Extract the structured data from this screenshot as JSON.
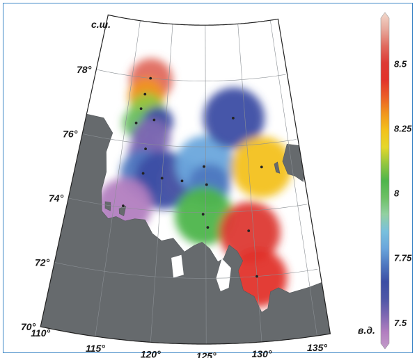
{
  "axes": {
    "lat_title": "с.ш.",
    "lon_title": "в.д.",
    "lat_labels": [
      {
        "text": "78°",
        "lat": 78
      },
      {
        "text": "76°",
        "lat": 76
      },
      {
        "text": "74°",
        "lat": 74
      },
      {
        "text": "72°",
        "lat": 72
      },
      {
        "text": "70°",
        "lat": 70
      }
    ],
    "lon_labels": [
      {
        "text": "110°",
        "lon": 110
      },
      {
        "text": "115°",
        "lon": 115
      },
      {
        "text": "120°",
        "lon": 120
      },
      {
        "text": "125°",
        "lon": 125
      },
      {
        "text": "130°",
        "lon": 130
      },
      {
        "text": "135°",
        "lon": 135
      }
    ]
  },
  "colorbar": {
    "min": 7.4,
    "max": 8.7,
    "ticks": [
      {
        "text": "8.5",
        "value": 8.5
      },
      {
        "text": "8.25",
        "value": 8.25
      },
      {
        "text": "8",
        "value": 8.0
      },
      {
        "text": "7.75",
        "value": 7.75
      },
      {
        "text": "7.5",
        "value": 7.5
      }
    ],
    "colors": [
      "#c39cc9",
      "#b27ec0",
      "#7d68b2",
      "#4d56a6",
      "#3b4ea4",
      "#4f78c0",
      "#6aa6dc",
      "#79c0dd",
      "#92d0a2",
      "#6dc065",
      "#4eb54b",
      "#93c63e",
      "#e5d72a",
      "#f3c11b",
      "#f1951d",
      "#eb5d26",
      "#e2322a",
      "#dd3a34",
      "#e06a5e",
      "#e7a99c",
      "#f3d9cc"
    ]
  },
  "stations": [
    {
      "lon": 117.5,
      "lat": 78.0,
      "value": 8.55
    },
    {
      "lon": 117.0,
      "lat": 77.5,
      "value": 8.3
    },
    {
      "lon": 116.7,
      "lat": 77.05,
      "value": 8.15
    },
    {
      "lon": 116.3,
      "lat": 76.6,
      "value": 8.05
    },
    {
      "lon": 118.5,
      "lat": 76.75,
      "value": 7.55
    },
    {
      "lon": 117.8,
      "lat": 75.85,
      "value": 7.5
    },
    {
      "lon": 117.8,
      "lat": 75.1,
      "value": 7.72
    },
    {
      "lon": 120.0,
      "lat": 75.0,
      "value": 7.68
    },
    {
      "lon": 122.3,
      "lat": 74.95,
      "value": 7.55
    },
    {
      "lon": 124.8,
      "lat": 75.4,
      "value": 7.8
    },
    {
      "lon": 125.1,
      "lat": 74.85,
      "value": 7.7
    },
    {
      "lon": 128.5,
      "lat": 76.85,
      "value": 7.68
    },
    {
      "lon": 131.5,
      "lat": 75.3,
      "value": 8.25
    },
    {
      "lon": 116.0,
      "lat": 74.05,
      "value": 7.5
    },
    {
      "lon": 124.7,
      "lat": 73.95,
      "value": 8.02
    },
    {
      "lon": 125.2,
      "lat": 73.55,
      "value": 8.0
    },
    {
      "lon": 129.5,
      "lat": 73.4,
      "value": 8.5
    },
    {
      "lon": 130.0,
      "lat": 72.0,
      "value": 8.45
    }
  ],
  "blobs": [
    {
      "lon": 117.6,
      "lat": 77.95,
      "r": 31,
      "value": 8.55
    },
    {
      "lon": 117.2,
      "lat": 77.45,
      "r": 26,
      "value": 8.3
    },
    {
      "lon": 117.5,
      "lat": 77.0,
      "r": 26,
      "value": 8.1
    },
    {
      "lon": 116.5,
      "lat": 76.6,
      "r": 22,
      "value": 8.0
    },
    {
      "lon": 119.0,
      "lat": 76.7,
      "r": 22,
      "value": 7.65
    },
    {
      "lon": 118.3,
      "lat": 76.2,
      "r": 28,
      "value": 7.55
    },
    {
      "lon": 117.9,
      "lat": 75.7,
      "r": 26,
      "value": 7.5
    },
    {
      "lon": 117.9,
      "lat": 75.1,
      "r": 34,
      "value": 7.72
    },
    {
      "lon": 120.2,
      "lat": 74.95,
      "r": 42,
      "value": 7.68
    },
    {
      "lon": 122.3,
      "lat": 74.95,
      "r": 30,
      "value": 7.6
    },
    {
      "lon": 124.9,
      "lat": 75.45,
      "r": 42,
      "value": 7.8
    },
    {
      "lon": 125.4,
      "lat": 74.85,
      "r": 30,
      "value": 7.72
    },
    {
      "lon": 128.6,
      "lat": 76.85,
      "r": 44,
      "value": 7.68
    },
    {
      "lon": 131.5,
      "lat": 75.3,
      "r": 44,
      "value": 8.25
    },
    {
      "lon": 116.1,
      "lat": 74.05,
      "r": 40,
      "value": 7.48
    },
    {
      "lon": 124.8,
      "lat": 73.9,
      "r": 42,
      "value": 8.02
    },
    {
      "lon": 129.6,
      "lat": 73.35,
      "r": 44,
      "value": 8.5
    },
    {
      "lon": 130.1,
      "lat": 71.95,
      "r": 42,
      "value": 8.45
    }
  ],
  "land": [
    [
      [
        106,
        69.5
      ],
      [
        116,
        69.5
      ],
      [
        124,
        69.5
      ],
      [
        132,
        69.5
      ],
      [
        140,
        69.5
      ],
      [
        140,
        71.2
      ],
      [
        138,
        71.5
      ],
      [
        136.5,
        71.6
      ],
      [
        135,
        71.5
      ],
      [
        133,
        71.4
      ],
      [
        132,
        71.6
      ],
      [
        131.2,
        71.5
      ],
      [
        130.8,
        71.0
      ],
      [
        130.2,
        70.9
      ],
      [
        129.6,
        71.4
      ],
      [
        128.6,
        71.6
      ],
      [
        128.2,
        72.2
      ],
      [
        128.7,
        72.5
      ],
      [
        128.2,
        72.8
      ],
      [
        127.4,
        73.0
      ],
      [
        126.8,
        72.6
      ],
      [
        126.2,
        72.5
      ],
      [
        125.4,
        72.9
      ],
      [
        124.6,
        73.1
      ],
      [
        123.8,
        73.0
      ],
      [
        122.8,
        72.8
      ],
      [
        121.6,
        73.2
      ],
      [
        120.4,
        73.1
      ],
      [
        119.4,
        73.3
      ],
      [
        118.5,
        73.7
      ],
      [
        117.4,
        73.7
      ],
      [
        116.4,
        73.6
      ],
      [
        115.4,
        73.7
      ],
      [
        114.6,
        73.6
      ],
      [
        113.8,
        73.8
      ],
      [
        113.4,
        74.4
      ],
      [
        113.6,
        75.0
      ],
      [
        113.2,
        75.6
      ],
      [
        113.6,
        76.2
      ],
      [
        112.2,
        76.6
      ],
      [
        106,
        76.6
      ]
    ],
    [
      [
        137.5,
        73.0
      ],
      [
        140,
        73.0
      ],
      [
        140,
        73.6
      ],
      [
        138.6,
        73.6
      ],
      [
        137.9,
        73.3
      ]
    ],
    [
      [
        134.0,
        75.4
      ],
      [
        134.8,
        75.9
      ],
      [
        136.2,
        75.8
      ],
      [
        136.6,
        75.2
      ],
      [
        136.0,
        74.7
      ],
      [
        135.2,
        74.9
      ],
      [
        134.4,
        75.0
      ]
    ],
    [
      [
        133.0,
        75.35
      ],
      [
        133.4,
        75.4
      ],
      [
        133.5,
        75.05
      ],
      [
        133.1,
        75.1
      ]
    ],
    [
      [
        114.0,
        74.1
      ],
      [
        114.6,
        74.1
      ],
      [
        114.7,
        73.85
      ],
      [
        114.1,
        73.9
      ]
    ],
    [
      [
        115.6,
        73.95
      ],
      [
        116.3,
        74.05
      ],
      [
        116.2,
        73.75
      ],
      [
        115.7,
        73.8
      ]
    ]
  ],
  "ocean": [
    [
      [
        126.0,
        72.0
      ],
      [
        126.6,
        72.6
      ],
      [
        127.5,
        72.3
      ],
      [
        127.2,
        71.7
      ],
      [
        126.4,
        71.6
      ]
    ],
    [
      [
        121.5,
        72.6
      ],
      [
        122.5,
        72.7
      ],
      [
        122.8,
        72.1
      ],
      [
        121.8,
        72.0
      ]
    ]
  ]
}
